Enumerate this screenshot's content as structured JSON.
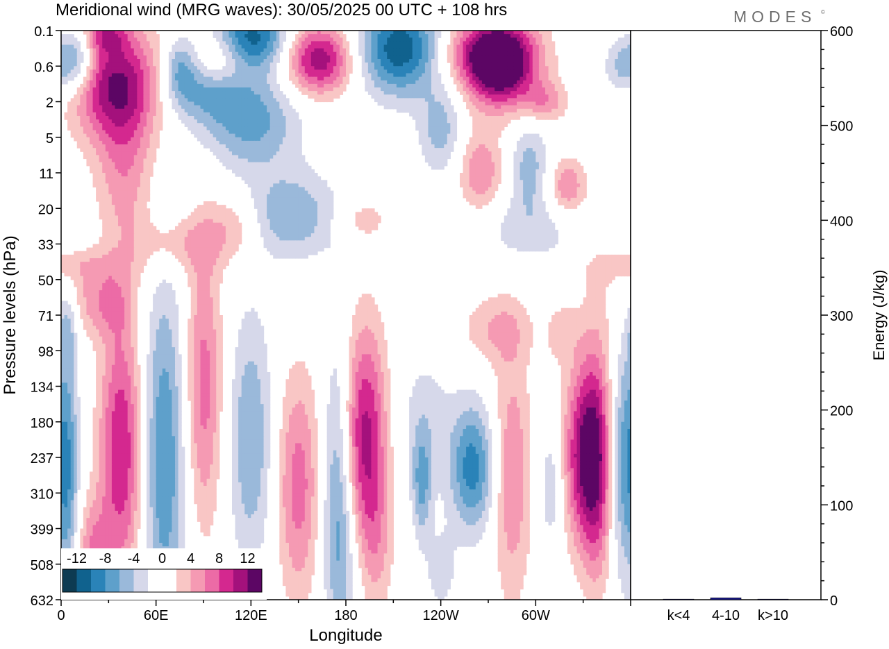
{
  "chart_data": [
    {
      "type": "heatmap",
      "title": "Meridional wind (MRG waves):  30/05/2025  00 UTC  + 108 hrs",
      "xlabel": "Longitude",
      "ylabel": "Pressure levels (hPa)",
      "x_ticks": [
        "0",
        "60E",
        "120E",
        "180",
        "120W",
        "60W"
      ],
      "y_ticks": [
        "0.1",
        "0.6",
        "2",
        "5",
        "11",
        "20",
        "33",
        "50",
        "71",
        "98",
        "134",
        "180",
        "237",
        "310",
        "399",
        "508",
        "632"
      ],
      "colorbar": {
        "labels": [
          "-12",
          "-8",
          "-4",
          "0",
          "4",
          "8",
          "12"
        ],
        "colors": [
          "#0d3b52",
          "#10628e",
          "#2a83b8",
          "#5ea0cb",
          "#9ab9da",
          "#d6d8ea",
          "#ffffff",
          "#ffffff",
          "#f9c6c5",
          "#f59ab3",
          "#ec6ba6",
          "#d4288f",
          "#a4117c",
          "#5c0664"
        ]
      },
      "blobs": [
        {
          "lon": 10,
          "lvl": 0.8,
          "w": 12,
          "h": 0.9,
          "v": -8
        },
        {
          "lon": 28,
          "lvl": 0.1,
          "w": 14,
          "h": 0.5,
          "v": 6
        },
        {
          "lon": 35,
          "lvl": 1.5,
          "w": 28,
          "h": 1.6,
          "v": 12
        },
        {
          "lon": 40,
          "lvl": 4.0,
          "w": 18,
          "h": 2.0,
          "v": 5
        },
        {
          "lon": 75,
          "lvl": 1.0,
          "w": 10,
          "h": 0.9,
          "v": -5
        },
        {
          "lon": 100,
          "lvl": 0.8,
          "w": 18,
          "h": 0.8,
          "v": 6
        },
        {
          "lon": 88,
          "lvl": 1.6,
          "w": 24,
          "h": 1.0,
          "v": -6
        },
        {
          "lon": 120,
          "lvl": 0.2,
          "w": 24,
          "h": 0.9,
          "v": -11
        },
        {
          "lon": 120,
          "lvl": 2.5,
          "w": 30,
          "h": 1.4,
          "v": -7
        },
        {
          "lon": 163,
          "lvl": 0.8,
          "w": 22,
          "h": 1.0,
          "v": 12
        },
        {
          "lon": 145,
          "lvl": 5.2,
          "w": 30,
          "h": 1.2,
          "v": -6
        },
        {
          "lon": 110,
          "lvl": 5.5,
          "w": 18,
          "h": 1.0,
          "v": 4
        },
        {
          "lon": 72,
          "lvl": 6.0,
          "w": 28,
          "h": 0.8,
          "v": 4
        },
        {
          "lon": 190,
          "lvl": 5.3,
          "w": 18,
          "h": 0.6,
          "v": 3
        },
        {
          "lon": 215,
          "lvl": 0.5,
          "w": 28,
          "h": 1.3,
          "v": -12
        },
        {
          "lon": 240,
          "lvl": 2.8,
          "w": 14,
          "h": 1.2,
          "v": -5
        },
        {
          "lon": 267,
          "lvl": 0.6,
          "w": 32,
          "h": 1.0,
          "v": 8
        },
        {
          "lon": 278,
          "lvl": 1.0,
          "w": 22,
          "h": 1.2,
          "v": 13
        },
        {
          "lon": 265,
          "lvl": 4.0,
          "w": 14,
          "h": 1.2,
          "v": 6
        },
        {
          "lon": 296,
          "lvl": 3.8,
          "w": 12,
          "h": 1.3,
          "v": -5
        },
        {
          "lon": 306,
          "lvl": 2.0,
          "w": 14,
          "h": 0.6,
          "v": 5
        },
        {
          "lon": 320,
          "lvl": 4.4,
          "w": 12,
          "h": 0.8,
          "v": 6
        },
        {
          "lon": 295,
          "lvl": 5.6,
          "w": 40,
          "h": 1.0,
          "v": -3
        },
        {
          "lon": 316,
          "lvl": 8.5,
          "w": 10,
          "h": 0.8,
          "v": 3
        },
        {
          "lon": 355,
          "lvl": 1.0,
          "w": 12,
          "h": 0.8,
          "v": -5
        },
        {
          "lon": 5,
          "lvl": 6.6,
          "w": 32,
          "h": 0.5,
          "v": 3
        },
        {
          "lon": 25,
          "lvl": 7.6,
          "w": 20,
          "h": 1.0,
          "v": 5
        },
        {
          "lon": 4,
          "lvl": 8.3,
          "w": 6,
          "h": 1.0,
          "v": -4
        },
        {
          "lon": 38,
          "lvl": 11.8,
          "w": 14,
          "h": 3.8,
          "v": 10
        },
        {
          "lon": 65,
          "lvl": 12.0,
          "w": 14,
          "h": 5.0,
          "v": -8
        },
        {
          "lon": 90,
          "lvl": 10.0,
          "w": 12,
          "h": 4.0,
          "v": 7
        },
        {
          "lon": 120,
          "lvl": 11.5,
          "w": 14,
          "h": 3.5,
          "v": -6
        },
        {
          "lon": 150,
          "lvl": 12.8,
          "w": 14,
          "h": 3.2,
          "v": 7
        },
        {
          "lon": 175,
          "lvl": 12.5,
          "w": 10,
          "h": 4.0,
          "v": -6
        },
        {
          "lon": 192,
          "lvl": 11.5,
          "w": 14,
          "h": 3.2,
          "v": 11
        },
        {
          "lon": 230,
          "lvl": 11.0,
          "w": 18,
          "h": 2.0,
          "v": -3
        },
        {
          "lon": 228,
          "lvl": 12.8,
          "w": 6,
          "h": 1.5,
          "v": -6
        },
        {
          "lon": 260,
          "lvl": 12.3,
          "w": 14,
          "h": 1.8,
          "v": -9
        },
        {
          "lon": 285,
          "lvl": 12.5,
          "w": 12,
          "h": 3.5,
          "v": 6
        },
        {
          "lon": 275,
          "lvl": 8.4,
          "w": 22,
          "h": 1.0,
          "v": 4
        },
        {
          "lon": 335,
          "lvl": 12.0,
          "w": 16,
          "h": 2.5,
          "v": 14
        },
        {
          "lon": 355,
          "lvl": 12.0,
          "w": 12,
          "h": 3.2,
          "v": -10
        },
        {
          "lon": 310,
          "lvl": 12.8,
          "w": 8,
          "h": 1.8,
          "v": -4
        },
        {
          "lon": 5,
          "lvl": 12.5,
          "w": 6,
          "h": 3.5,
          "v": -4
        },
        {
          "lon": 20,
          "lvl": 14.8,
          "w": 10,
          "h": 1.6,
          "v": 6
        },
        {
          "lon": 178,
          "lvl": 14.8,
          "w": 12,
          "h": 2.5,
          "v": -3
        },
        {
          "lon": 200,
          "lvl": 14.5,
          "w": 10,
          "h": 2.0,
          "v": 3
        },
        {
          "lon": 340,
          "lvl": 9.5,
          "w": 14,
          "h": 3.5,
          "v": 3
        },
        {
          "lon": 340,
          "lvl": 14.5,
          "w": 10,
          "h": 2.0,
          "v": 3
        },
        {
          "lon": 240,
          "lvl": 15.2,
          "w": 10,
          "h": 1.2,
          "v": -3
        }
      ]
    },
    {
      "type": "bar",
      "categories": [
        "k<4",
        "4-10",
        "k>10"
      ],
      "values": [
        0,
        2,
        0
      ],
      "ylabel": "Energy (J/kg)",
      "ylim": [
        0,
        600
      ],
      "y_ticks": [
        0,
        100,
        200,
        300,
        400,
        500,
        600
      ],
      "bar_color": "#1a1a8c"
    }
  ],
  "brand": "MODES",
  "brand_mark": "©"
}
